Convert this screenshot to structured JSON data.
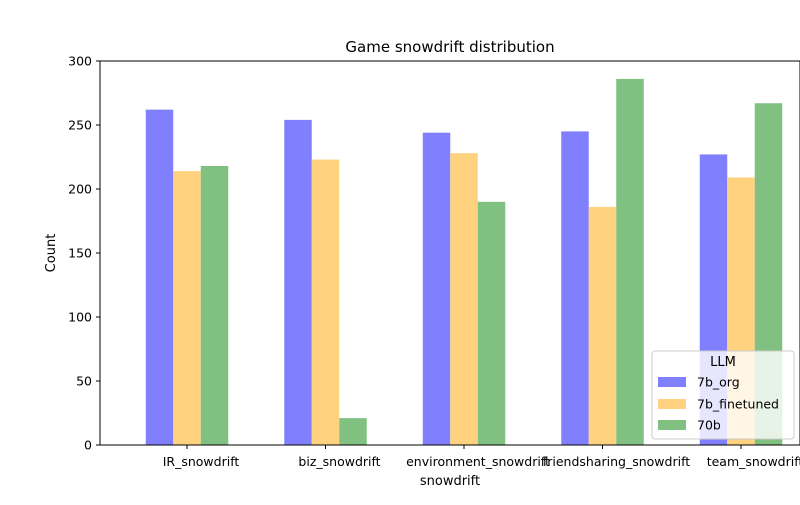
{
  "chart_data": {
    "type": "bar",
    "title": "Game snowdrift distribution",
    "xlabel": "snowdrift",
    "ylabel": "Count",
    "categories": [
      "IR_snowdrift",
      "biz_snowdrift",
      "environment_snowdrift",
      "friendsharing_snowdrift",
      "team_snowdrift"
    ],
    "series": [
      {
        "name": "7b_org",
        "color": "#8080ff",
        "values": [
          262,
          254,
          244,
          245,
          227
        ]
      },
      {
        "name": "7b_finetuned",
        "color": "#ffd280",
        "values": [
          214,
          223,
          228,
          186,
          209
        ]
      },
      {
        "name": "70b",
        "color": "#80c080",
        "values": [
          218,
          21,
          190,
          286,
          267
        ]
      }
    ],
    "ylim": [
      0,
      300
    ],
    "yticks": [
      0,
      50,
      100,
      150,
      200,
      250,
      300
    ],
    "grid": false,
    "legend": {
      "title": "LLM",
      "placement": "lower-right"
    }
  }
}
